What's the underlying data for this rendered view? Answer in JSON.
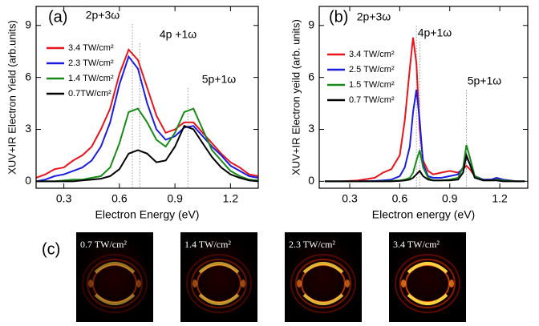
{
  "chart_data": [
    {
      "type": "line",
      "panel_label": "(a)",
      "x_label": "Electron Energy (eV)",
      "y_label": "XUV+IR Electron Yield (arb.units)",
      "xlim": [
        0.15,
        1.35
      ],
      "ylim": [
        -0.4,
        10.1
      ],
      "xticks": [
        0.3,
        0.6,
        0.9,
        1.2
      ],
      "yticks": [
        0,
        3,
        6,
        9
      ],
      "x": [
        0.15,
        0.2,
        0.25,
        0.3,
        0.35,
        0.4,
        0.45,
        0.5,
        0.55,
        0.6,
        0.65,
        0.7,
        0.75,
        0.8,
        0.85,
        0.9,
        0.95,
        1.0,
        1.05,
        1.1,
        1.15,
        1.2,
        1.25,
        1.3,
        1.35
      ],
      "series": [
        {
          "name": "3.4 TW/cm²",
          "color": "#e8141c",
          "values": [
            0.2,
            0.4,
            0.7,
            0.8,
            1.2,
            1.5,
            2.0,
            3.0,
            4.2,
            6.2,
            7.6,
            7.0,
            5.4,
            3.8,
            2.8,
            3.0,
            3.4,
            3.4,
            2.8,
            2.2,
            1.6,
            1.1,
            0.8,
            0.4,
            0.3
          ]
        },
        {
          "name": "2.3 TW/cm²",
          "color": "#1c1ce0",
          "values": [
            0,
            0.1,
            0.3,
            0.4,
            0.6,
            0.8,
            1.2,
            2.0,
            3.4,
            5.6,
            7.2,
            6.5,
            4.5,
            3.0,
            2.4,
            2.6,
            3.1,
            3.2,
            2.6,
            2.0,
            1.5,
            0.9,
            0.6,
            0.3,
            0.2
          ]
        },
        {
          "name": "1.4 TW/cm²",
          "color": "#188a18",
          "values": [
            0,
            0,
            0,
            0.05,
            0.1,
            0.1,
            0.2,
            0.3,
            0.8,
            2.2,
            4.0,
            4.2,
            3.4,
            2.4,
            2.0,
            2.8,
            4.0,
            4.2,
            3.0,
            1.8,
            1.2,
            0.6,
            0.3,
            0.1,
            0.05
          ]
        },
        {
          "name": "0.7TW/cm²",
          "color": "#000000",
          "values": [
            0,
            0,
            0,
            0,
            0,
            0.05,
            0.1,
            0.15,
            0.3,
            0.7,
            1.6,
            1.8,
            1.6,
            1.1,
            1.2,
            2.0,
            3.2,
            3.0,
            2.2,
            1.4,
            0.8,
            0.4,
            0.2,
            0.05,
            0
          ]
        }
      ],
      "annotations": [
        {
          "text": "2p+3ω",
          "x": 0.67
        },
        {
          "text": "4p +1ω",
          "x": 0.71
        },
        {
          "text": "5p+1ω",
          "x": 0.97
        }
      ]
    },
    {
      "type": "line",
      "panel_label": "(b)",
      "x_label": "Electron energy (eV)",
      "y_label": "XUV+IR Electron yeild (arb. units)",
      "xlim": [
        0.117,
        1.368
      ],
      "ylim": [
        -0.4,
        10.1
      ],
      "xticks": [
        0.3,
        0.6,
        0.9,
        1.2
      ],
      "yticks": [
        0,
        3,
        6,
        9
      ],
      "x": [
        0.15,
        0.25,
        0.35,
        0.45,
        0.5,
        0.55,
        0.6,
        0.63,
        0.66,
        0.68,
        0.7,
        0.72,
        0.74,
        0.77,
        0.8,
        0.85,
        0.9,
        0.95,
        0.98,
        1.0,
        1.02,
        1.05,
        1.1,
        1.15,
        1.18,
        1.22,
        1.3,
        1.35
      ],
      "series": [
        {
          "name": "3.4 TW/cm²",
          "color": "#e8141c",
          "values": [
            0,
            0,
            0.05,
            0.2,
            0.5,
            0.7,
            1.5,
            3.5,
            6.5,
            8.3,
            6.8,
            3.0,
            1.2,
            0.6,
            0.4,
            0.5,
            0.6,
            0.5,
            0.7,
            0.9,
            0.7,
            0.3,
            0.1,
            0.1,
            0.2,
            0.1,
            0,
            0
          ]
        },
        {
          "name": "2.5 TW/cm²",
          "color": "#1c1ce0",
          "values": [
            0,
            0,
            0,
            0.02,
            0.05,
            0.1,
            0.3,
            0.8,
            2.0,
            4.0,
            5.3,
            3.5,
            1.0,
            0.3,
            0.2,
            0.2,
            0.3,
            0.4,
            0.8,
            1.4,
            1.0,
            0.3,
            0.1,
            0.1,
            0.2,
            0.1,
            0,
            0
          ]
        },
        {
          "name": "1.5 TW/cm²",
          "color": "#188a18",
          "values": [
            0,
            0,
            0,
            0,
            0,
            0.02,
            0.05,
            0.1,
            0.2,
            0.5,
            1.2,
            1.8,
            0.8,
            0.2,
            0.05,
            0.05,
            0.1,
            0.2,
            0.8,
            2.1,
            1.4,
            0.3,
            0.05,
            0.05,
            0.1,
            0.05,
            0,
            0
          ]
        },
        {
          "name": "0.7 TW/cm²",
          "color": "#000000",
          "values": [
            0,
            0,
            0,
            0,
            0,
            0,
            0.02,
            0.05,
            0.1,
            0.2,
            0.4,
            0.6,
            0.3,
            0.1,
            0.05,
            0.05,
            0.05,
            0.1,
            0.5,
            1.5,
            1.0,
            0.2,
            0.05,
            0.05,
            0.05,
            0,
            0,
            0
          ]
        }
      ],
      "annotations": [
        {
          "text": "2p+3ω",
          "x": 0.7
        },
        {
          "text": "4p+1ω",
          "x": 0.72
        },
        {
          "text": "5p+1ω",
          "x": 1.0
        }
      ]
    }
  ],
  "panel_c": {
    "label": "(c)",
    "images": [
      {
        "label": "0.7 TW/cm²"
      },
      {
        "label": "1.4 TW/cm²"
      },
      {
        "label": "2.3 TW/cm²"
      },
      {
        "label": "3.4 TW/cm²"
      }
    ]
  }
}
